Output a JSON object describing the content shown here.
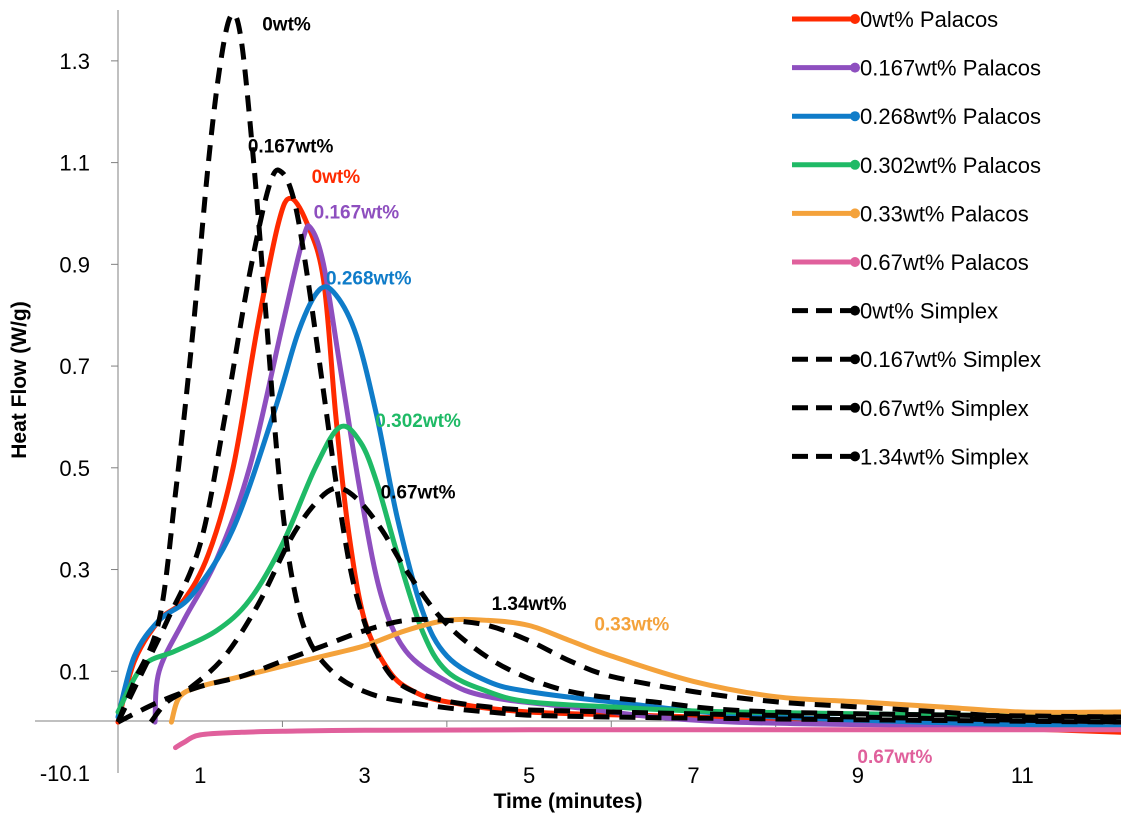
{
  "chart_data": {
    "type": "line",
    "title": "",
    "xlabel": "Time (minutes)",
    "ylabel": "Heat Flow (W/g)",
    "xlim": [
      0,
      12.2
    ],
    "ylim": [
      -0.1,
      1.4
    ],
    "x_ticks": [
      1,
      3,
      5,
      7,
      9,
      11
    ],
    "x_tick_labels": [
      "1",
      "3",
      "5",
      "7",
      "9",
      "11"
    ],
    "y_ticks": [
      0.1,
      0.3,
      0.5,
      0.7,
      0.9,
      1.1,
      1.3
    ],
    "y_tick_labels": [
      "0.1",
      "0.3",
      "0.5",
      "0.7",
      "0.9",
      "1.1",
      "1.3"
    ],
    "y_bottom_label": "-10.1",
    "grid": false,
    "legend_position": "top-right",
    "series": [
      {
        "name": "0wt% Palacos",
        "color": "#ff2a00",
        "dash": "solid",
        "points": [
          [
            0,
            0
          ],
          [
            0.2,
            0.12
          ],
          [
            0.5,
            0.2
          ],
          [
            0.8,
            0.24
          ],
          [
            1.1,
            0.33
          ],
          [
            1.4,
            0.5
          ],
          [
            1.7,
            0.78
          ],
          [
            1.95,
            0.98
          ],
          [
            2.1,
            1.03
          ],
          [
            2.3,
            0.98
          ],
          [
            2.5,
            0.87
          ],
          [
            2.65,
            0.6
          ],
          [
            2.8,
            0.38
          ],
          [
            3.0,
            0.2
          ],
          [
            3.3,
            0.1
          ],
          [
            3.6,
            0.06
          ],
          [
            4.0,
            0.04
          ],
          [
            5.0,
            0.02
          ],
          [
            7.0,
            0.01
          ],
          [
            12.2,
            -0.02
          ]
        ]
      },
      {
        "name": "0.167wt% Palacos",
        "color": "#8e4fbf",
        "dash": "solid",
        "points": [
          [
            0.45,
            0.0
          ],
          [
            0.5,
            0.1
          ],
          [
            0.8,
            0.2
          ],
          [
            1.2,
            0.32
          ],
          [
            1.6,
            0.5
          ],
          [
            2.0,
            0.78
          ],
          [
            2.25,
            0.95
          ],
          [
            2.35,
            0.97
          ],
          [
            2.5,
            0.9
          ],
          [
            2.7,
            0.7
          ],
          [
            2.95,
            0.45
          ],
          [
            3.2,
            0.25
          ],
          [
            3.5,
            0.14
          ],
          [
            4.0,
            0.08
          ],
          [
            4.5,
            0.05
          ],
          [
            5.5,
            0.03
          ],
          [
            7.5,
            0.0
          ],
          [
            12.2,
            -0.01
          ]
        ]
      },
      {
        "name": "0.268wt% Palacos",
        "color": "#0f7cc9",
        "dash": "solid",
        "points": [
          [
            0,
            0.01
          ],
          [
            0.2,
            0.13
          ],
          [
            0.5,
            0.2
          ],
          [
            0.9,
            0.25
          ],
          [
            1.4,
            0.38
          ],
          [
            1.9,
            0.61
          ],
          [
            2.2,
            0.77
          ],
          [
            2.45,
            0.85
          ],
          [
            2.65,
            0.84
          ],
          [
            2.9,
            0.76
          ],
          [
            3.15,
            0.6
          ],
          [
            3.4,
            0.4
          ],
          [
            3.7,
            0.22
          ],
          [
            4.0,
            0.13
          ],
          [
            4.5,
            0.08
          ],
          [
            5.0,
            0.06
          ],
          [
            6.0,
            0.04
          ],
          [
            8.0,
            0.01
          ],
          [
            12.2,
            -0.01
          ]
        ]
      },
      {
        "name": "0.302wt% Palacos",
        "color": "#1fba66",
        "dash": "solid",
        "points": [
          [
            0,
            0.02
          ],
          [
            0.3,
            0.11
          ],
          [
            0.7,
            0.14
          ],
          [
            1.2,
            0.18
          ],
          [
            1.6,
            0.24
          ],
          [
            2.0,
            0.35
          ],
          [
            2.4,
            0.5
          ],
          [
            2.7,
            0.58
          ],
          [
            2.95,
            0.55
          ],
          [
            3.15,
            0.47
          ],
          [
            3.4,
            0.33
          ],
          [
            3.7,
            0.18
          ],
          [
            4.0,
            0.1
          ],
          [
            4.5,
            0.06
          ],
          [
            5.0,
            0.04
          ],
          [
            6.0,
            0.03
          ],
          [
            7.5,
            0.02
          ],
          [
            12.2,
            0.01
          ]
        ]
      },
      {
        "name": "0.33wt% Palacos",
        "color": "#f4a23b",
        "dash": "solid",
        "points": [
          [
            0.65,
            0.0
          ],
          [
            0.75,
            0.05
          ],
          [
            1.0,
            0.07
          ],
          [
            1.5,
            0.09
          ],
          [
            2.0,
            0.11
          ],
          [
            2.5,
            0.13
          ],
          [
            3.0,
            0.15
          ],
          [
            3.5,
            0.18
          ],
          [
            4.0,
            0.2
          ],
          [
            4.5,
            0.2
          ],
          [
            5.0,
            0.19
          ],
          [
            5.5,
            0.16
          ],
          [
            6.0,
            0.13
          ],
          [
            7.0,
            0.08
          ],
          [
            8.0,
            0.05
          ],
          [
            9.0,
            0.04
          ],
          [
            10.0,
            0.03
          ],
          [
            11.0,
            0.02
          ],
          [
            12.2,
            0.02
          ]
        ]
      },
      {
        "name": "0.67wt% Palacos",
        "color": "#e0609c",
        "dash": "solid",
        "points": [
          [
            0.7,
            -0.05
          ],
          [
            0.8,
            -0.04
          ],
          [
            1.0,
            -0.025
          ],
          [
            1.5,
            -0.02
          ],
          [
            2.0,
            -0.018
          ],
          [
            3.0,
            -0.016
          ],
          [
            5.0,
            -0.015
          ],
          [
            8.0,
            -0.015
          ],
          [
            12.2,
            -0.015
          ]
        ]
      },
      {
        "name": "0wt% Simplex",
        "color": "#000000",
        "dash": "dashed",
        "points": [
          [
            0,
            0
          ],
          [
            0.2,
            0.08
          ],
          [
            0.5,
            0.2
          ],
          [
            0.7,
            0.45
          ],
          [
            0.9,
            0.75
          ],
          [
            1.1,
            1.1
          ],
          [
            1.25,
            1.3
          ],
          [
            1.38,
            1.39
          ],
          [
            1.5,
            1.34
          ],
          [
            1.65,
            1.1
          ],
          [
            1.8,
            0.8
          ],
          [
            1.95,
            0.5
          ],
          [
            2.1,
            0.3
          ],
          [
            2.3,
            0.17
          ],
          [
            2.6,
            0.1
          ],
          [
            3.0,
            0.06
          ],
          [
            3.5,
            0.04
          ],
          [
            4.5,
            0.02
          ],
          [
            6.0,
            0.01
          ],
          [
            12.2,
            0.0
          ]
        ]
      },
      {
        "name": "0.167wt% Simplex",
        "color": "#000000",
        "dash": "dashed",
        "points": [
          [
            0,
            0
          ],
          [
            0.3,
            0.1
          ],
          [
            0.6,
            0.2
          ],
          [
            1.0,
            0.35
          ],
          [
            1.3,
            0.6
          ],
          [
            1.6,
            0.88
          ],
          [
            1.85,
            1.06
          ],
          [
            2.0,
            1.08
          ],
          [
            2.15,
            1.02
          ],
          [
            2.3,
            0.88
          ],
          [
            2.5,
            0.65
          ],
          [
            2.7,
            0.42
          ],
          [
            2.9,
            0.25
          ],
          [
            3.2,
            0.12
          ],
          [
            3.6,
            0.06
          ],
          [
            4.5,
            0.03
          ],
          [
            6.0,
            0.02
          ],
          [
            12.2,
            0.0
          ]
        ]
      },
      {
        "name": "0.67wt% Simplex",
        "color": "#000000",
        "dash": "dashed",
        "points": [
          [
            0.4,
            0.0
          ],
          [
            0.6,
            0.04
          ],
          [
            0.9,
            0.07
          ],
          [
            1.3,
            0.13
          ],
          [
            1.7,
            0.23
          ],
          [
            2.1,
            0.36
          ],
          [
            2.4,
            0.43
          ],
          [
            2.65,
            0.46
          ],
          [
            2.9,
            0.44
          ],
          [
            3.2,
            0.38
          ],
          [
            3.5,
            0.3
          ],
          [
            3.9,
            0.21
          ],
          [
            4.3,
            0.15
          ],
          [
            4.8,
            0.1
          ],
          [
            5.5,
            0.06
          ],
          [
            6.5,
            0.04
          ],
          [
            8.0,
            0.02
          ],
          [
            12.2,
            0.01
          ]
        ]
      },
      {
        "name": "1.34wt% Simplex",
        "color": "#000000",
        "dash": "dashed",
        "points": [
          [
            0,
            0
          ],
          [
            0.5,
            0.04
          ],
          [
            1.0,
            0.07
          ],
          [
            1.5,
            0.09
          ],
          [
            2.0,
            0.12
          ],
          [
            2.5,
            0.15
          ],
          [
            3.0,
            0.18
          ],
          [
            3.5,
            0.2
          ],
          [
            4.0,
            0.2
          ],
          [
            4.5,
            0.19
          ],
          [
            5.0,
            0.16
          ],
          [
            5.5,
            0.12
          ],
          [
            6.0,
            0.09
          ],
          [
            7.0,
            0.06
          ],
          [
            8.0,
            0.04
          ],
          [
            9.0,
            0.03
          ],
          [
            10.0,
            0.02
          ],
          [
            11.0,
            0.01
          ],
          [
            12.2,
            0.01
          ]
        ]
      }
    ],
    "annotations": [
      {
        "text": "0wt%",
        "x": 2.05,
        "y": 1.36,
        "color": "#000000"
      },
      {
        "text": "0.167wt%",
        "x": 2.1,
        "y": 1.12,
        "color": "#000000"
      },
      {
        "text": "0wt%",
        "x": 2.65,
        "y": 1.06,
        "color": "#ff2a00"
      },
      {
        "text": "0.167wt%",
        "x": 2.9,
        "y": 0.99,
        "color": "#8e4fbf"
      },
      {
        "text": "0.268wt%",
        "x": 3.05,
        "y": 0.86,
        "color": "#0f7cc9"
      },
      {
        "text": "0.302wt%",
        "x": 3.65,
        "y": 0.58,
        "color": "#1fba66"
      },
      {
        "text": "0.67wt%",
        "x": 3.65,
        "y": 0.44,
        "color": "#000000"
      },
      {
        "text": "1.34wt%",
        "x": 5.0,
        "y": 0.22,
        "color": "#000000"
      },
      {
        "text": "0.33wt%",
        "x": 6.25,
        "y": 0.18,
        "color": "#f4a23b"
      },
      {
        "text": "0.67wt%",
        "x": 9.45,
        "y": -0.08,
        "color": "#e0609c"
      }
    ]
  }
}
